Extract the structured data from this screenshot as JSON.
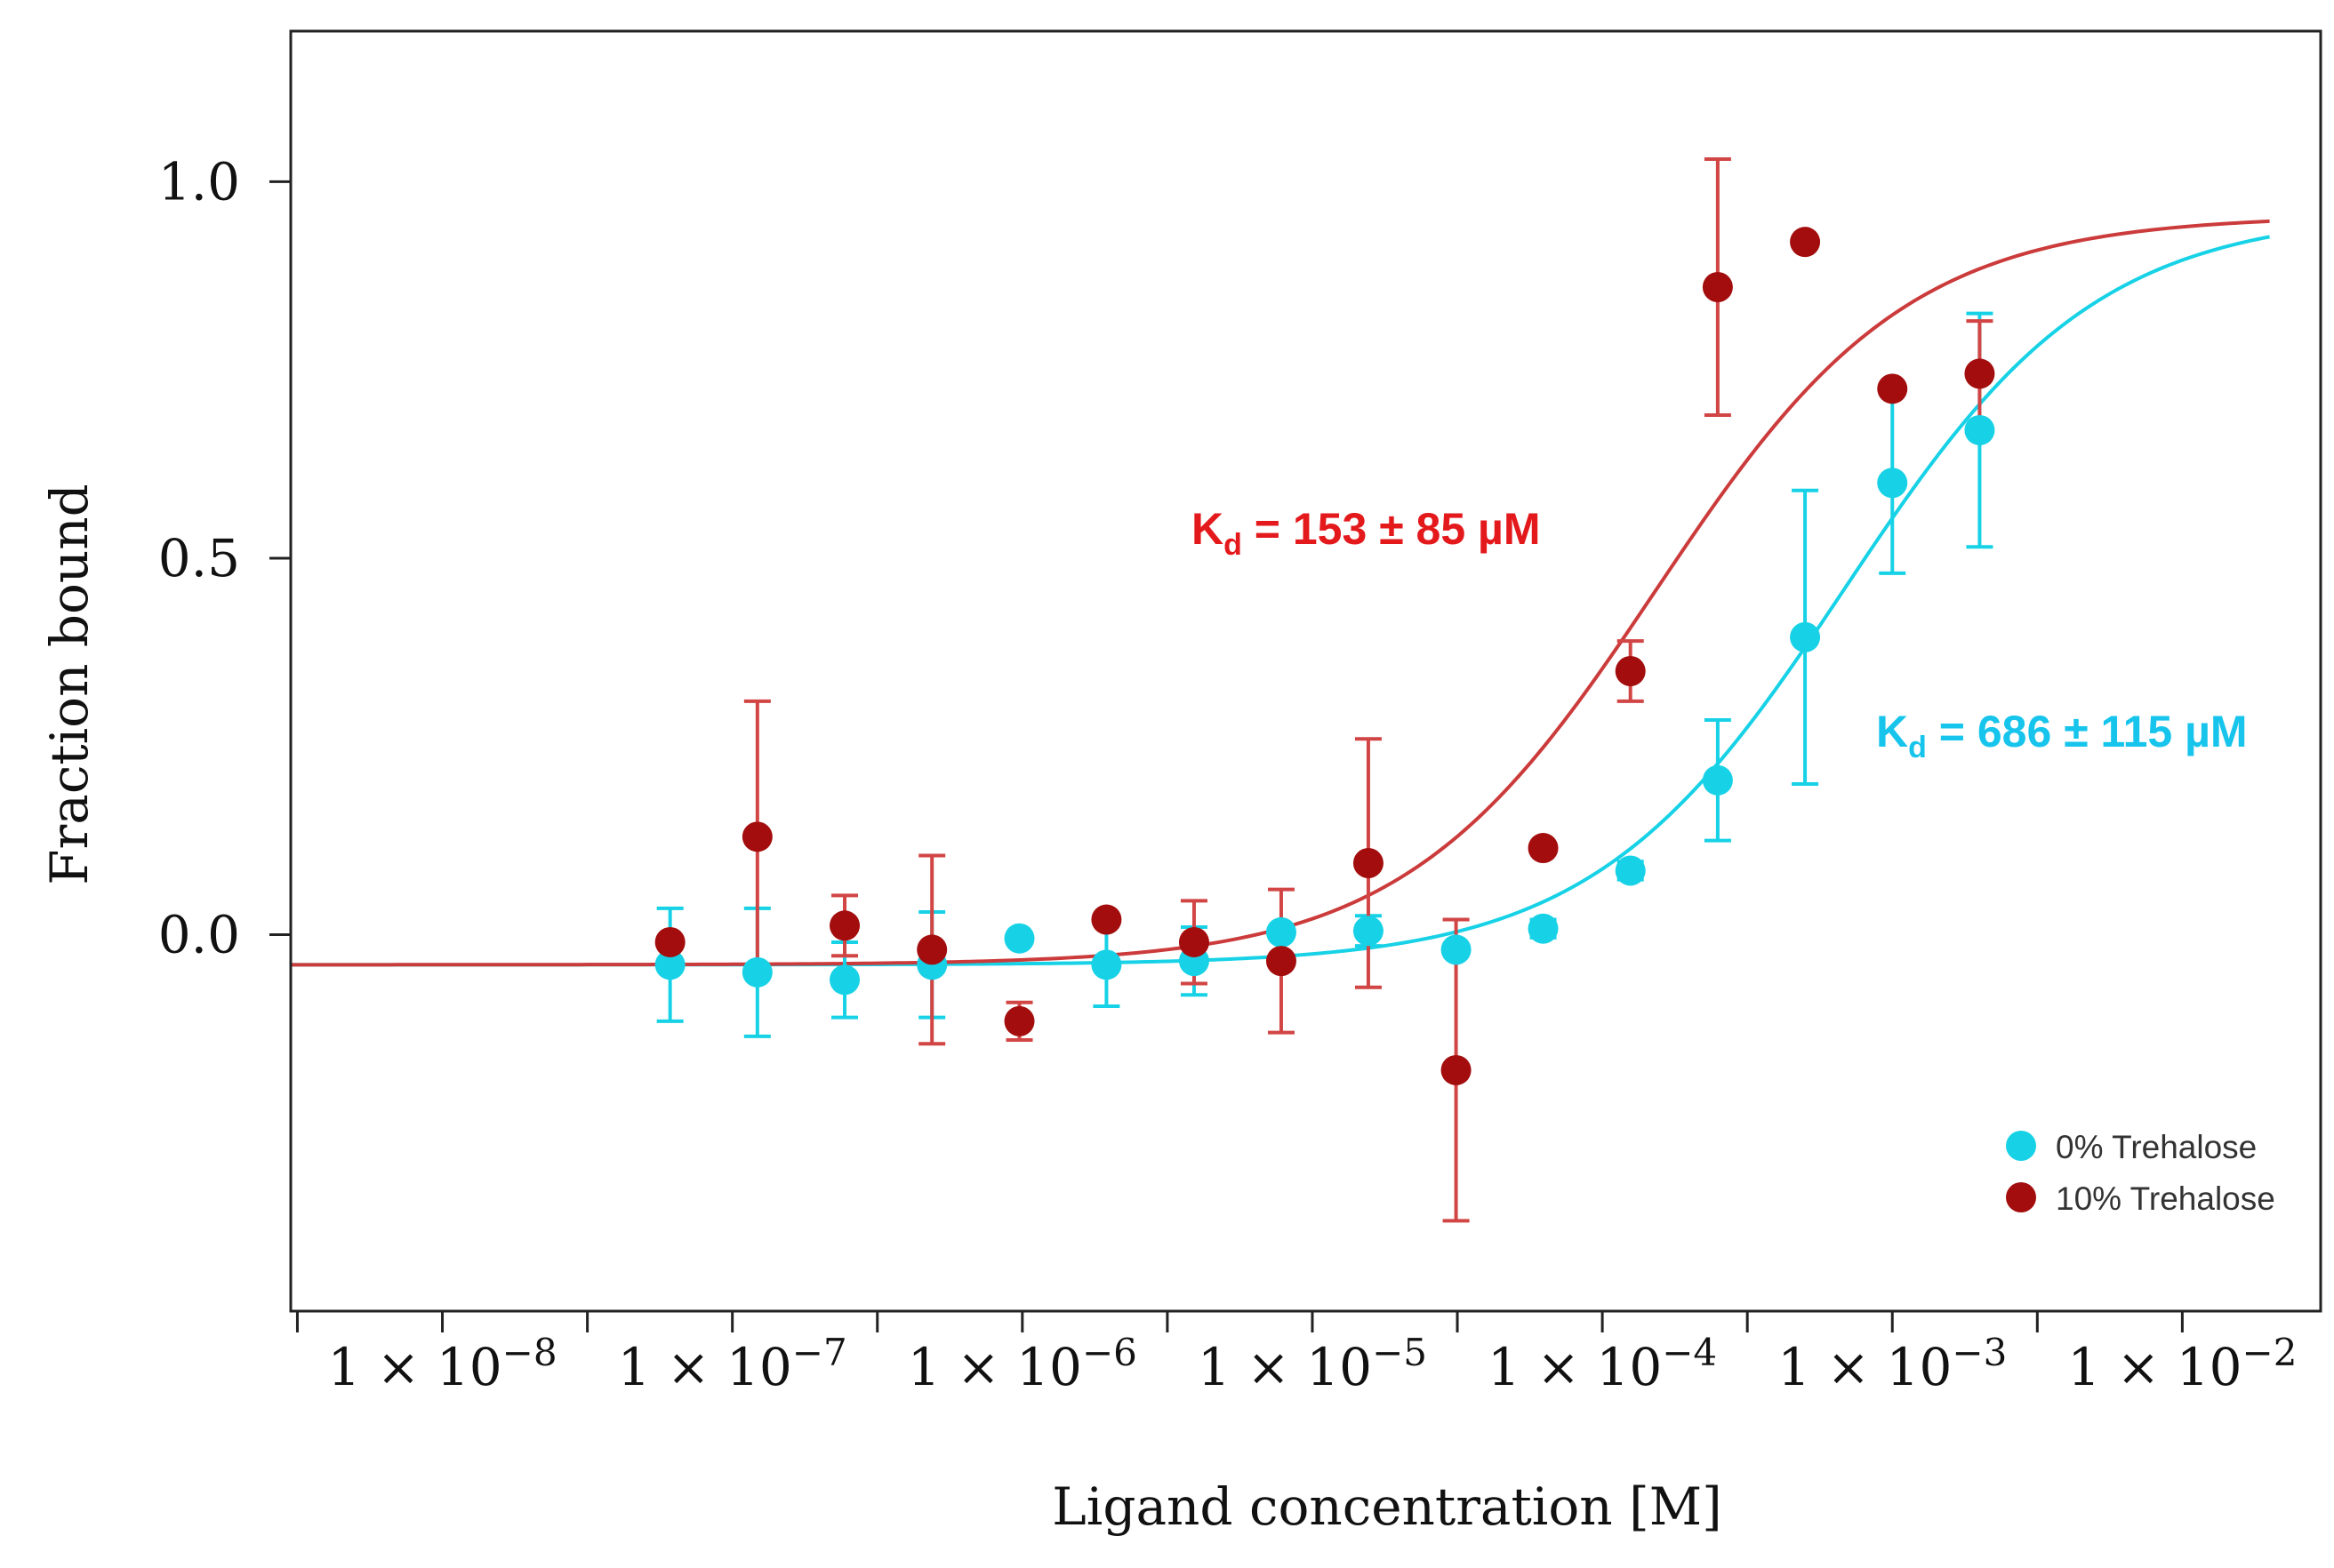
{
  "chart_data": {
    "type": "scatter",
    "title": "",
    "xlabel": "Ligand concentration [M]",
    "ylabel": "Fraction bound",
    "xscale": "log",
    "xlim": [
      3e-09,
      0.03
    ],
    "ylim": [
      -0.5,
      1.2
    ],
    "xticks": [
      {
        "value": 1e-08,
        "mant": "1 × 10",
        "exp": "−8"
      },
      {
        "value": 1e-07,
        "mant": "1 × 10",
        "exp": "−7"
      },
      {
        "value": 1e-06,
        "mant": "1 × 10",
        "exp": "−6"
      },
      {
        "value": 1e-05,
        "mant": "1 × 10",
        "exp": "−5"
      },
      {
        "value": 0.0001,
        "mant": "1 × 10",
        "exp": "−4"
      },
      {
        "value": 0.001,
        "mant": "1 × 10",
        "exp": "−3"
      },
      {
        "value": 0.01,
        "mant": "1 × 10",
        "exp": "−2"
      }
    ],
    "yticks": [
      {
        "value": 0.0,
        "label": "0.0"
      },
      {
        "value": 0.5,
        "label": "0.5"
      },
      {
        "value": 1.0,
        "label": "1.0"
      }
    ],
    "legend_position": "bottom-right",
    "series": [
      {
        "name": "0% Trehalose",
        "color": "#17d2e6",
        "points": [
          {
            "x": 6.1e-08,
            "y": -0.04,
            "err": 0.075
          },
          {
            "x": 1.22e-07,
            "y": -0.05,
            "err": 0.085
          },
          {
            "x": 2.44e-07,
            "y": -0.06,
            "err": 0.05
          },
          {
            "x": 4.88e-07,
            "y": -0.04,
            "err": 0.07
          },
          {
            "x": 9.77e-07,
            "y": -0.005,
            "err": 0.0
          },
          {
            "x": 1.95e-06,
            "y": -0.04,
            "err": 0.055
          },
          {
            "x": 3.91e-06,
            "y": -0.035,
            "err": 0.045
          },
          {
            "x": 7.81e-06,
            "y": 0.003,
            "err": 0.0
          },
          {
            "x": 1.56e-05,
            "y": 0.005,
            "err": 0.02
          },
          {
            "x": 3.13e-05,
            "y": -0.02,
            "err": 0.0
          },
          {
            "x": 6.25e-05,
            "y": 0.008,
            "err": 0.012
          },
          {
            "x": 0.000125,
            "y": 0.085,
            "err": 0.012
          },
          {
            "x": 0.00025,
            "y": 0.205,
            "err": 0.08
          },
          {
            "x": 0.0005,
            "y": 0.395,
            "err": 0.195
          },
          {
            "x": 0.001,
            "y": 0.6,
            "err": 0.12
          },
          {
            "x": 0.002,
            "y": 0.67,
            "err": 0.155
          }
        ],
        "fit": {
          "kd_molar": 0.000686,
          "bottom": -0.04,
          "top": 0.96,
          "x_range": [
            3e-09,
            0.02
          ]
        },
        "kd_label": {
          "prefix": "K",
          "sub": "d",
          "text": " = 686 ± 115 µM"
        }
      },
      {
        "name": "10% Trehalose",
        "color": "#a30d0d",
        "points": [
          {
            "x": 6.1e-08,
            "y": -0.01,
            "err": 0.0
          },
          {
            "x": 1.22e-07,
            "y": 0.13,
            "err": 0.18
          },
          {
            "x": 2.44e-07,
            "y": 0.012,
            "err": 0.04
          },
          {
            "x": 4.88e-07,
            "y": -0.02,
            "err": 0.125
          },
          {
            "x": 9.77e-07,
            "y": -0.115,
            "err": 0.025
          },
          {
            "x": 1.95e-06,
            "y": 0.02,
            "err": 0.0
          },
          {
            "x": 3.91e-06,
            "y": -0.01,
            "err": 0.055
          },
          {
            "x": 7.81e-06,
            "y": -0.035,
            "err": 0.095
          },
          {
            "x": 1.56e-05,
            "y": 0.095,
            "err": 0.165
          },
          {
            "x": 3.13e-05,
            "y": -0.18,
            "err": 0.2
          },
          {
            "x": 6.25e-05,
            "y": 0.115,
            "err": 0.0
          },
          {
            "x": 0.000125,
            "y": 0.35,
            "err": 0.04
          },
          {
            "x": 0.00025,
            "y": 0.86,
            "err": 0.17
          },
          {
            "x": 0.0005,
            "y": 0.92,
            "err": 0.0
          },
          {
            "x": 0.001,
            "y": 0.725,
            "err": 0.0
          },
          {
            "x": 0.002,
            "y": 0.745,
            "err": 0.07
          }
        ],
        "fit": {
          "kd_molar": 0.000153,
          "bottom": -0.04,
          "top": 0.955,
          "x_range": [
            3e-09,
            0.02
          ]
        },
        "kd_label": {
          "prefix": "K",
          "sub": "d",
          "text": " = 153 ± 85 µM"
        }
      }
    ]
  },
  "colors": {
    "curve_0": "#17d2e6",
    "curve_10": "#cc3b3b",
    "errorbar_10": "#d24545",
    "kd_label_0": "#16c4ec",
    "kd_label_10": "#e3191c"
  }
}
